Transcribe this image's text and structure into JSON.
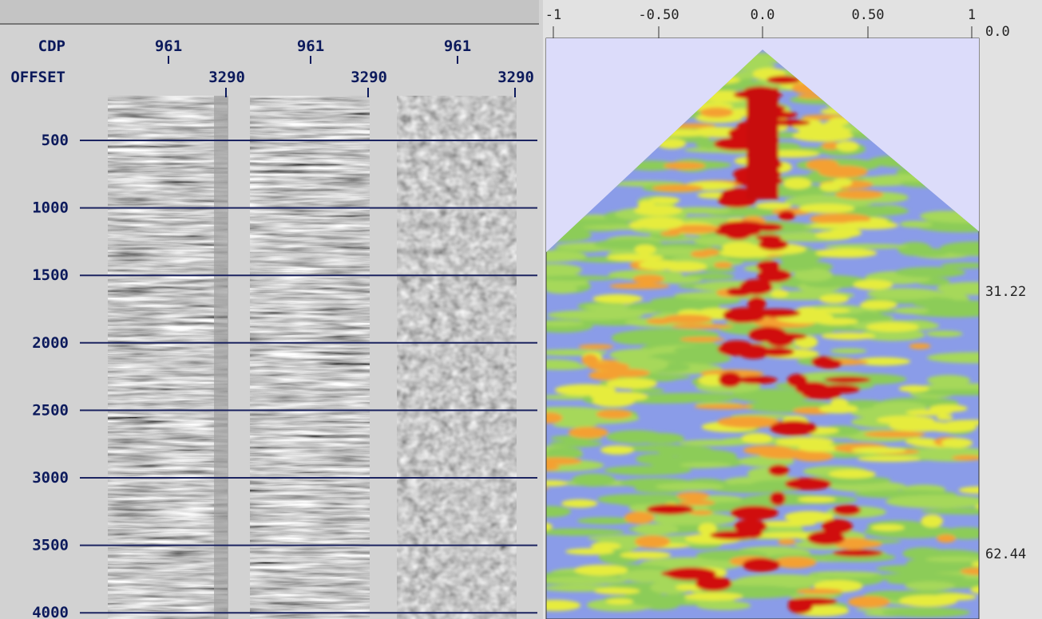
{
  "left_panel": {
    "row_labels": [
      "CDP",
      "OFFSET"
    ],
    "gathers": [
      {
        "cdp": "961",
        "offset": "3290"
      },
      {
        "cdp": "961",
        "offset": "3290"
      },
      {
        "cdp": "961",
        "offset": "3290"
      }
    ],
    "time_labels": [
      "500",
      "1000",
      "1500",
      "2000",
      "2500",
      "3000",
      "3500",
      "4000"
    ]
  },
  "right_panel": {
    "x_labels": [
      "-1",
      "-0.50",
      "0.0",
      "0.50",
      "1"
    ],
    "y_labels": [
      "0.0",
      "31.22",
      "62.44"
    ]
  }
}
